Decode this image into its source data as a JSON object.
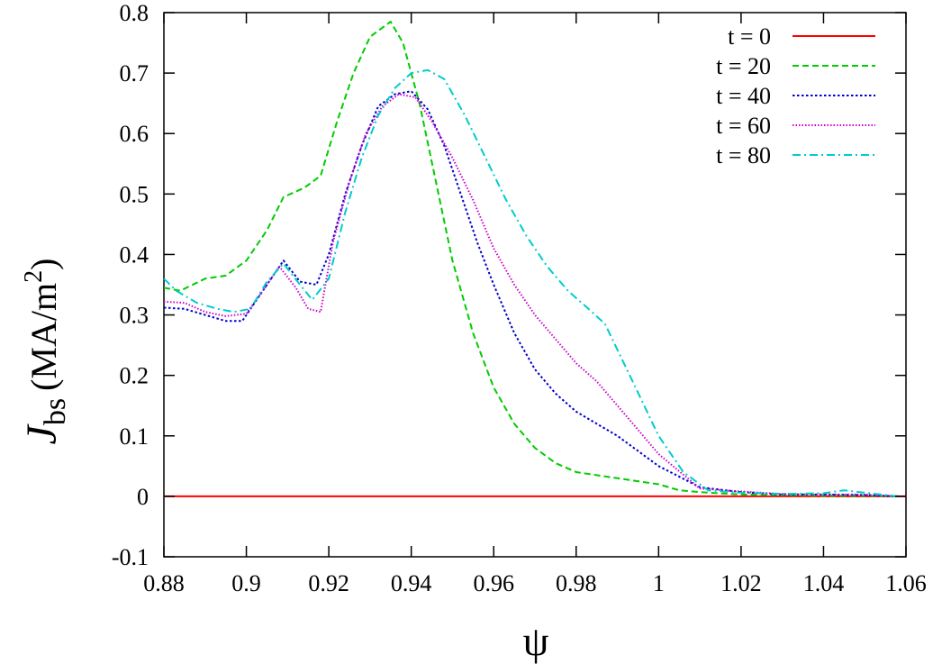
{
  "chart_data": {
    "type": "line",
    "xlabel": "ψ",
    "ylabel_main": "J",
    "ylabel_sub": "bs",
    "ylabel_units_open": "(MA/m",
    "ylabel_units_sup": "2",
    "ylabel_units_close": ")",
    "xlim": [
      0.88,
      1.06
    ],
    "ylim": [
      -0.1,
      0.8
    ],
    "xticks": [
      "0.88",
      "0.9",
      "0.92",
      "0.94",
      "0.96",
      "0.98",
      "1",
      "1.02",
      "1.04",
      "1.06"
    ],
    "yticks": [
      "-0.1",
      "0",
      "0.1",
      "0.2",
      "0.3",
      "0.4",
      "0.5",
      "0.6",
      "0.7",
      "0.8"
    ],
    "grid": false,
    "legend_position": "top-right",
    "series": [
      {
        "name": "t = 0",
        "color": "#ff0000",
        "dash": "solid",
        "x": [
          0.88,
          1.06
        ],
        "y": [
          0.0,
          0.0
        ]
      },
      {
        "name": "t = 20",
        "color": "#00cc00",
        "dash": "dashed",
        "x": [
          0.88,
          0.884,
          0.89,
          0.895,
          0.9,
          0.905,
          0.909,
          0.914,
          0.918,
          0.922,
          0.926,
          0.93,
          0.935,
          0.938,
          0.942,
          0.946,
          0.95,
          0.955,
          0.96,
          0.965,
          0.97,
          0.975,
          0.98,
          0.99,
          1.0,
          1.005,
          1.01,
          1.02,
          1.03,
          1.04,
          1.05,
          1.058
        ],
        "y": [
          0.345,
          0.34,
          0.36,
          0.365,
          0.39,
          0.44,
          0.495,
          0.51,
          0.53,
          0.62,
          0.7,
          0.76,
          0.785,
          0.75,
          0.65,
          0.52,
          0.39,
          0.27,
          0.18,
          0.12,
          0.08,
          0.055,
          0.04,
          0.03,
          0.02,
          0.01,
          0.007,
          0.003,
          0.002,
          0.001,
          0.001,
          0.0
        ]
      },
      {
        "name": "t = 40",
        "color": "#0000cc",
        "dash": "dotted",
        "x": [
          0.88,
          0.885,
          0.89,
          0.895,
          0.899,
          0.904,
          0.909,
          0.913,
          0.917,
          0.92,
          0.924,
          0.928,
          0.932,
          0.936,
          0.94,
          0.944,
          0.948,
          0.952,
          0.956,
          0.96,
          0.965,
          0.97,
          0.975,
          0.98,
          0.985,
          0.99,
          1.0,
          1.01,
          1.02,
          1.03,
          1.04,
          1.05,
          1.058
        ],
        "y": [
          0.312,
          0.31,
          0.3,
          0.29,
          0.29,
          0.34,
          0.39,
          0.355,
          0.35,
          0.4,
          0.5,
          0.58,
          0.645,
          0.665,
          0.67,
          0.64,
          0.58,
          0.5,
          0.42,
          0.35,
          0.27,
          0.21,
          0.17,
          0.14,
          0.12,
          0.1,
          0.05,
          0.015,
          0.007,
          0.003,
          0.003,
          0.002,
          0.0
        ]
      },
      {
        "name": "t = 60",
        "color": "#cc00cc",
        "dash": "dotted-fine",
        "x": [
          0.88,
          0.885,
          0.89,
          0.895,
          0.9,
          0.904,
          0.908,
          0.912,
          0.915,
          0.918,
          0.921,
          0.925,
          0.929,
          0.933,
          0.937,
          0.941,
          0.945,
          0.95,
          0.955,
          0.96,
          0.965,
          0.97,
          0.975,
          0.98,
          0.985,
          0.99,
          1.0,
          1.01,
          1.02,
          1.03,
          1.04,
          1.05,
          1.058
        ],
        "y": [
          0.322,
          0.32,
          0.305,
          0.298,
          0.302,
          0.34,
          0.38,
          0.345,
          0.31,
          0.305,
          0.42,
          0.52,
          0.6,
          0.645,
          0.665,
          0.66,
          0.62,
          0.56,
          0.49,
          0.41,
          0.35,
          0.3,
          0.26,
          0.22,
          0.19,
          0.15,
          0.07,
          0.013,
          0.008,
          0.004,
          0.003,
          0.003,
          0.0
        ]
      },
      {
        "name": "t = 80",
        "color": "#00cccc",
        "dash": "dash-dot",
        "x": [
          0.88,
          0.883,
          0.888,
          0.893,
          0.897,
          0.901,
          0.905,
          0.909,
          0.913,
          0.916,
          0.92,
          0.924,
          0.928,
          0.932,
          0.936,
          0.94,
          0.944,
          0.948,
          0.953,
          0.958,
          0.963,
          0.968,
          0.973,
          0.978,
          0.983,
          0.987,
          0.993,
          1.0,
          1.006,
          1.012,
          1.02,
          1.03,
          1.04,
          1.045,
          1.05,
          1.058
        ],
        "y": [
          0.36,
          0.34,
          0.32,
          0.31,
          0.305,
          0.31,
          0.355,
          0.385,
          0.35,
          0.325,
          0.36,
          0.47,
          0.56,
          0.63,
          0.675,
          0.7,
          0.705,
          0.69,
          0.63,
          0.56,
          0.49,
          0.43,
          0.38,
          0.34,
          0.31,
          0.285,
          0.2,
          0.1,
          0.04,
          0.01,
          0.006,
          0.004,
          0.005,
          0.01,
          0.006,
          0.0
        ]
      }
    ]
  }
}
